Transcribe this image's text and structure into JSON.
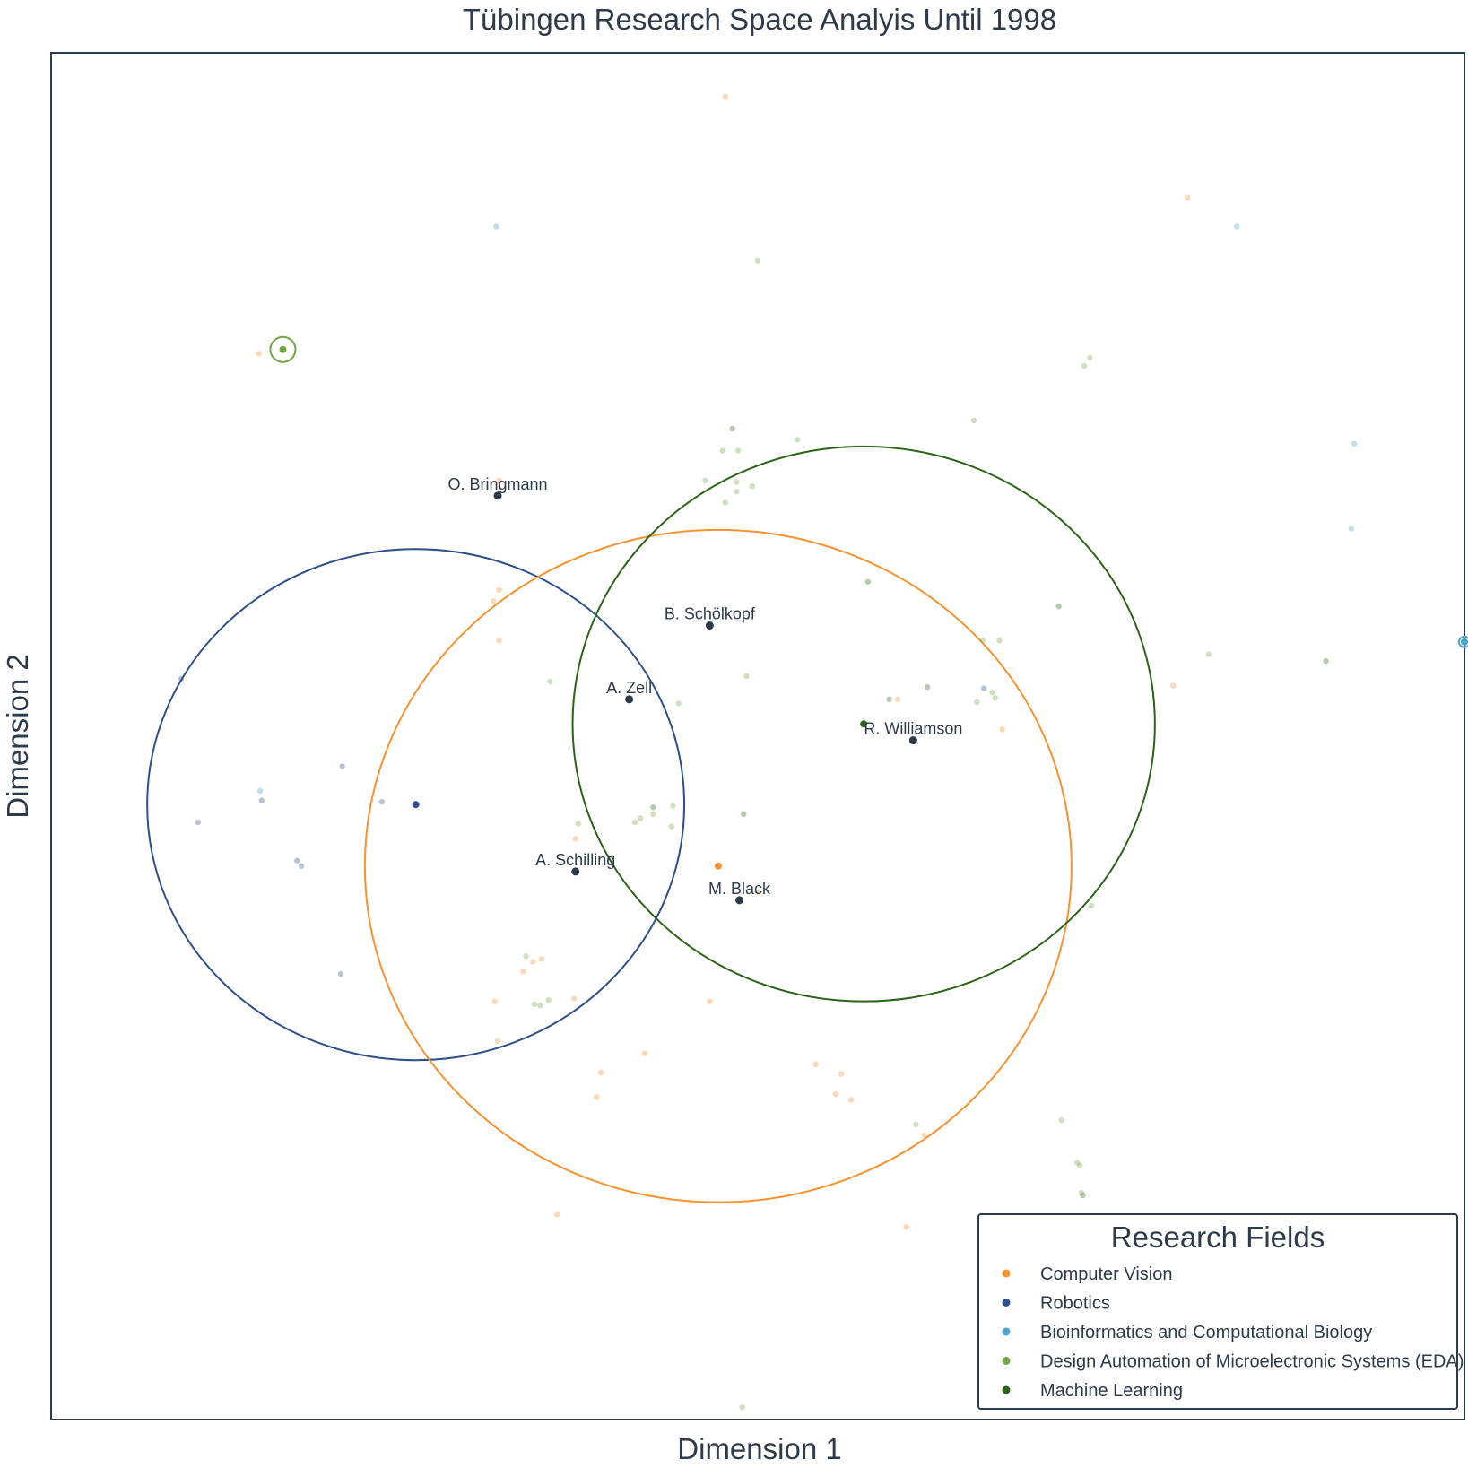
{
  "chart_data": {
    "type": "scatter",
    "title": "Tübingen Research Space Analyis Until 1998",
    "xlabel": "Dimension 1",
    "ylabel": "Dimension 2",
    "xlim": [
      -5,
      95
    ],
    "ylim": [
      0,
      100
    ],
    "ticks_shown": false,
    "grid": false,
    "legend": {
      "title": "Research Fields",
      "placement": "bottom-right",
      "entries": [
        {
          "label": "Computer Vision",
          "color": "#f7922e"
        },
        {
          "label": "Robotics",
          "color": "#2e4f8a"
        },
        {
          "label": "Bioinformatics and Computational Biology",
          "color": "#4aa3c8"
        },
        {
          "label": "Design Automation of Microelectronic Systems (EDA)",
          "color": "#72a544"
        },
        {
          "label": "Machine Learning",
          "color": "#2b6417"
        }
      ]
    },
    "field_regions": [
      {
        "field": "Robotics",
        "center": [
          20.8,
          45.0
        ],
        "rx": 19.0,
        "ry": 18.7,
        "color": "#2e4f8a"
      },
      {
        "field": "Computer Vision",
        "center": [
          42.2,
          40.5
        ],
        "rx": 25.0,
        "ry": 24.6,
        "color": "#f7922e"
      },
      {
        "field": "Machine Learning",
        "center": [
          52.5,
          50.9
        ],
        "rx": 20.6,
        "ry": 20.3,
        "color": "#2b6417"
      }
    ],
    "field_centroids": [
      {
        "field": "Robotics",
        "x": 20.8,
        "y": 45.0,
        "color": "#2e4f8a"
      },
      {
        "field": "Computer Vision",
        "x": 42.2,
        "y": 40.5,
        "color": "#f7922e"
      },
      {
        "field": "Machine Learning",
        "x": 52.5,
        "y": 50.9,
        "color": "#2b6417"
      },
      {
        "field": "Design Automation of Microelectronic Systems (EDA)",
        "x": 11.4,
        "y": 78.3,
        "color": "#72a544",
        "highlight": true
      },
      {
        "field": "Bioinformatics and Computational Biology",
        "x": 95.0,
        "y": 56.9,
        "color": "#4aa3c8",
        "highlight": true
      }
    ],
    "people": [
      {
        "name": "O. Bringmann",
        "x": 26.6,
        "y": 67.6
      },
      {
        "name": "B. Schölkopf",
        "x": 41.6,
        "y": 58.1
      },
      {
        "name": "A. Zell",
        "x": 35.9,
        "y": 52.7
      },
      {
        "name": "R. Williamson",
        "x": 56.0,
        "y": 49.7
      },
      {
        "name": "A. Schilling",
        "x": 32.1,
        "y": 40.1
      },
      {
        "name": "M. Black",
        "x": 43.7,
        "y": 38.0
      }
    ],
    "points": [
      {
        "x": 42.7,
        "y": 96.8,
        "field": "Computer Vision"
      },
      {
        "x": 75.4,
        "y": 89.4,
        "field": "Computer Vision"
      },
      {
        "x": 9.7,
        "y": 78.0,
        "field": "Computer Vision"
      },
      {
        "x": 26.7,
        "y": 68.7,
        "field": "Computer Vision"
      },
      {
        "x": 26.7,
        "y": 60.7,
        "field": "Computer Vision"
      },
      {
        "x": 26.3,
        "y": 59.9,
        "field": "Computer Vision"
      },
      {
        "x": 26.7,
        "y": 57.0,
        "field": "Computer Vision"
      },
      {
        "x": 74.4,
        "y": 53.7,
        "field": "Computer Vision"
      },
      {
        "x": 54.9,
        "y": 52.7,
        "field": "Computer Vision"
      },
      {
        "x": 62.3,
        "y": 50.5,
        "field": "Computer Vision"
      },
      {
        "x": 32.1,
        "y": 42.5,
        "field": "Computer Vision"
      },
      {
        "x": 45.0,
        "y": 38.6,
        "field": "Computer Vision"
      },
      {
        "x": 29.7,
        "y": 33.7,
        "field": "Computer Vision"
      },
      {
        "x": 28.4,
        "y": 32.8,
        "field": "Computer Vision"
      },
      {
        "x": 29.1,
        "y": 33.5,
        "field": "Computer Vision"
      },
      {
        "x": 32.0,
        "y": 30.8,
        "field": "Computer Vision"
      },
      {
        "x": 26.4,
        "y": 30.6,
        "field": "Computer Vision"
      },
      {
        "x": 41.6,
        "y": 30.6,
        "field": "Computer Vision"
      },
      {
        "x": 26.6,
        "y": 27.7,
        "field": "Computer Vision"
      },
      {
        "x": 37.0,
        "y": 26.8,
        "field": "Computer Vision"
      },
      {
        "x": 49.1,
        "y": 26.0,
        "field": "Computer Vision"
      },
      {
        "x": 33.9,
        "y": 25.4,
        "field": "Computer Vision"
      },
      {
        "x": 50.9,
        "y": 25.3,
        "field": "Computer Vision"
      },
      {
        "x": 50.5,
        "y": 23.8,
        "field": "Computer Vision"
      },
      {
        "x": 33.6,
        "y": 23.6,
        "field": "Computer Vision"
      },
      {
        "x": 51.6,
        "y": 23.4,
        "field": "Computer Vision"
      },
      {
        "x": 56.8,
        "y": 20.8,
        "field": "Computer Vision"
      },
      {
        "x": 30.8,
        "y": 15.0,
        "field": "Computer Vision"
      },
      {
        "x": 55.5,
        "y": 14.1,
        "field": "Computer Vision"
      },
      {
        "x": 61.7,
        "y": 3.7,
        "field": "Computer Vision"
      },
      {
        "x": 4.2,
        "y": 54.2,
        "field": "Robotics"
      },
      {
        "x": 15.6,
        "y": 47.8,
        "field": "Robotics"
      },
      {
        "x": 9.9,
        "y": 45.3,
        "field": "Robotics"
      },
      {
        "x": 18.4,
        "y": 45.2,
        "field": "Robotics"
      },
      {
        "x": 5.4,
        "y": 43.7,
        "field": "Robotics"
      },
      {
        "x": 12.4,
        "y": 40.9,
        "field": "Robotics"
      },
      {
        "x": 12.7,
        "y": 40.5,
        "field": "Robotics"
      },
      {
        "x": 15.5,
        "y": 32.6,
        "field": "Robotics"
      },
      {
        "x": 61.0,
        "y": 53.5,
        "field": "Robotics"
      },
      {
        "x": 26.5,
        "y": 87.3,
        "field": "Bioinformatics and Computational Biology"
      },
      {
        "x": 78.9,
        "y": 87.3,
        "field": "Bioinformatics and Computational Biology"
      },
      {
        "x": 87.2,
        "y": 71.4,
        "field": "Bioinformatics and Computational Biology"
      },
      {
        "x": 87.0,
        "y": 65.2,
        "field": "Bioinformatics and Computational Biology"
      },
      {
        "x": 9.8,
        "y": 46.0,
        "field": "Bioinformatics and Computational Biology"
      },
      {
        "x": 45.0,
        "y": 84.8,
        "field": "Design Automation of Microelectronic Systems (EDA)"
      },
      {
        "x": 68.5,
        "y": 77.7,
        "field": "Design Automation of Microelectronic Systems (EDA)"
      },
      {
        "x": 68.1,
        "y": 77.1,
        "field": "Design Automation of Microelectronic Systems (EDA)"
      },
      {
        "x": 60.3,
        "y": 73.1,
        "field": "Design Automation of Microelectronic Systems (EDA)"
      },
      {
        "x": 47.8,
        "y": 71.7,
        "field": "Design Automation of Microelectronic Systems (EDA)"
      },
      {
        "x": 42.5,
        "y": 70.9,
        "field": "Design Automation of Microelectronic Systems (EDA)"
      },
      {
        "x": 43.6,
        "y": 70.9,
        "field": "Design Automation of Microelectronic Systems (EDA)"
      },
      {
        "x": 41.3,
        "y": 68.7,
        "field": "Design Automation of Microelectronic Systems (EDA)"
      },
      {
        "x": 43.5,
        "y": 68.6,
        "field": "Design Automation of Microelectronic Systems (EDA)"
      },
      {
        "x": 44.6,
        "y": 68.3,
        "field": "Design Automation of Microelectronic Systems (EDA)"
      },
      {
        "x": 43.5,
        "y": 67.9,
        "field": "Design Automation of Microelectronic Systems (EDA)"
      },
      {
        "x": 42.7,
        "y": 67.1,
        "field": "Design Automation of Microelectronic Systems (EDA)"
      },
      {
        "x": 60.9,
        "y": 57.0,
        "field": "Design Automation of Microelectronic Systems (EDA)"
      },
      {
        "x": 62.1,
        "y": 57.0,
        "field": "Design Automation of Microelectronic Systems (EDA)"
      },
      {
        "x": 76.9,
        "y": 56.0,
        "field": "Design Automation of Microelectronic Systems (EDA)"
      },
      {
        "x": 44.2,
        "y": 54.4,
        "field": "Design Automation of Microelectronic Systems (EDA)"
      },
      {
        "x": 30.3,
        "y": 54.0,
        "field": "Design Automation of Microelectronic Systems (EDA)"
      },
      {
        "x": 39.4,
        "y": 52.4,
        "field": "Design Automation of Microelectronic Systems (EDA)"
      },
      {
        "x": 61.6,
        "y": 53.2,
        "field": "Design Automation of Microelectronic Systems (EDA)"
      },
      {
        "x": 61.8,
        "y": 52.8,
        "field": "Design Automation of Microelectronic Systems (EDA)"
      },
      {
        "x": 60.5,
        "y": 52.5,
        "field": "Design Automation of Microelectronic Systems (EDA)"
      },
      {
        "x": 39.0,
        "y": 44.9,
        "field": "Design Automation of Microelectronic Systems (EDA)"
      },
      {
        "x": 37.6,
        "y": 44.3,
        "field": "Design Automation of Microelectronic Systems (EDA)"
      },
      {
        "x": 36.7,
        "y": 44.0,
        "field": "Design Automation of Microelectronic Systems (EDA)"
      },
      {
        "x": 36.3,
        "y": 43.7,
        "field": "Design Automation of Microelectronic Systems (EDA)"
      },
      {
        "x": 38.9,
        "y": 43.4,
        "field": "Design Automation of Microelectronic Systems (EDA)"
      },
      {
        "x": 32.3,
        "y": 43.6,
        "field": "Design Automation of Microelectronic Systems (EDA)"
      },
      {
        "x": 68.6,
        "y": 37.6,
        "field": "Design Automation of Microelectronic Systems (EDA)"
      },
      {
        "x": 28.6,
        "y": 33.9,
        "field": "Design Automation of Microelectronic Systems (EDA)"
      },
      {
        "x": 30.2,
        "y": 30.7,
        "field": "Design Automation of Microelectronic Systems (EDA)"
      },
      {
        "x": 29.2,
        "y": 30.4,
        "field": "Design Automation of Microelectronic Systems (EDA)"
      },
      {
        "x": 29.6,
        "y": 30.3,
        "field": "Design Automation of Microelectronic Systems (EDA)"
      },
      {
        "x": 56.2,
        "y": 21.6,
        "field": "Design Automation of Microelectronic Systems (EDA)"
      },
      {
        "x": 66.5,
        "y": 21.9,
        "field": "Design Automation of Microelectronic Systems (EDA)"
      },
      {
        "x": 67.6,
        "y": 18.8,
        "field": "Design Automation of Microelectronic Systems (EDA)"
      },
      {
        "x": 67.8,
        "y": 18.6,
        "field": "Design Automation of Microelectronic Systems (EDA)"
      },
      {
        "x": 67.9,
        "y": 16.6,
        "field": "Design Automation of Microelectronic Systems (EDA)"
      },
      {
        "x": 43.9,
        "y": 0.9,
        "field": "Design Automation of Microelectronic Systems (EDA)"
      },
      {
        "x": 43.2,
        "y": 72.5,
        "field": "Machine Learning"
      },
      {
        "x": 52.8,
        "y": 61.3,
        "field": "Machine Learning"
      },
      {
        "x": 66.3,
        "y": 59.5,
        "field": "Machine Learning"
      },
      {
        "x": 85.2,
        "y": 55.5,
        "field": "Machine Learning"
      },
      {
        "x": 57.0,
        "y": 53.6,
        "field": "Machine Learning"
      },
      {
        "x": 54.3,
        "y": 52.7,
        "field": "Machine Learning"
      },
      {
        "x": 37.6,
        "y": 44.8,
        "field": "Machine Learning"
      },
      {
        "x": 44.0,
        "y": 44.3,
        "field": "Machine Learning"
      },
      {
        "x": 68.0,
        "y": 16.4,
        "field": "Machine Learning"
      }
    ]
  }
}
